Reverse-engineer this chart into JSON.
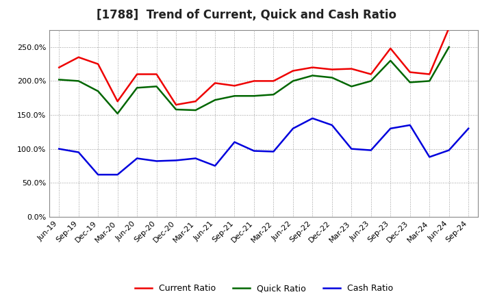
{
  "title": "[1788]  Trend of Current, Quick and Cash Ratio",
  "labels": [
    "Jun-19",
    "Sep-19",
    "Dec-19",
    "Mar-20",
    "Jun-20",
    "Sep-20",
    "Dec-20",
    "Mar-21",
    "Jun-21",
    "Sep-21",
    "Dec-21",
    "Mar-22",
    "Jun-22",
    "Sep-22",
    "Dec-22",
    "Mar-23",
    "Jun-23",
    "Sep-23",
    "Dec-23",
    "Mar-24",
    "Jun-24",
    "Sep-24"
  ],
  "current_ratio": [
    220,
    235,
    225,
    170,
    210,
    210,
    165,
    170,
    197,
    193,
    200,
    200,
    215,
    220,
    217,
    218,
    210,
    248,
    213,
    210,
    278,
    null
  ],
  "quick_ratio": [
    202,
    200,
    185,
    152,
    190,
    192,
    158,
    157,
    172,
    178,
    178,
    180,
    200,
    208,
    205,
    192,
    200,
    230,
    198,
    200,
    250,
    null
  ],
  "cash_ratio": [
    100,
    95,
    62,
    62,
    86,
    82,
    83,
    86,
    75,
    110,
    97,
    96,
    130,
    145,
    135,
    100,
    98,
    130,
    135,
    88,
    98,
    130
  ],
  "current_color": "#EE0000",
  "quick_color": "#006600",
  "cash_color": "#0000DD",
  "ylim": [
    0,
    275
  ],
  "yticks": [
    0,
    50,
    100,
    150,
    200,
    250
  ],
  "background_color": "#FFFFFF",
  "grid_color": "#999999",
  "title_fontsize": 12,
  "tick_fontsize": 8,
  "legend_fontsize": 9
}
